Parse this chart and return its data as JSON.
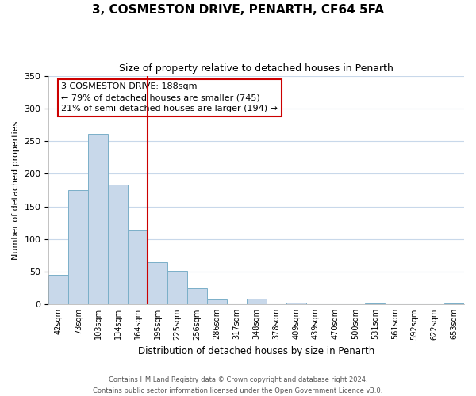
{
  "title": "3, COSMESTON DRIVE, PENARTH, CF64 5FA",
  "subtitle": "Size of property relative to detached houses in Penarth",
  "xlabel": "Distribution of detached houses by size in Penarth",
  "ylabel": "Number of detached properties",
  "bar_labels": [
    "42sqm",
    "73sqm",
    "103sqm",
    "134sqm",
    "164sqm",
    "195sqm",
    "225sqm",
    "256sqm",
    "286sqm",
    "317sqm",
    "348sqm",
    "378sqm",
    "409sqm",
    "439sqm",
    "470sqm",
    "500sqm",
    "531sqm",
    "561sqm",
    "592sqm",
    "622sqm",
    "653sqm"
  ],
  "bar_values": [
    45,
    175,
    261,
    184,
    113,
    65,
    51,
    25,
    8,
    0,
    9,
    0,
    3,
    0,
    0,
    0,
    2,
    0,
    0,
    0,
    2
  ],
  "bar_color": "#c8d8ea",
  "bar_edge_color": "#7aafc8",
  "vline_x": 4.5,
  "vline_color": "#cc0000",
  "ylim": [
    0,
    350
  ],
  "yticks": [
    0,
    50,
    100,
    150,
    200,
    250,
    300,
    350
  ],
  "annotation_title": "3 COSMESTON DRIVE: 188sqm",
  "annotation_line1": "← 79% of detached houses are smaller (745)",
  "annotation_line2": "21% of semi-detached houses are larger (194) →",
  "annotation_box_color": "#ffffff",
  "annotation_box_edge": "#cc0000",
  "footer_line1": "Contains HM Land Registry data © Crown copyright and database right 2024.",
  "footer_line2": "Contains public sector information licensed under the Open Government Licence v3.0.",
  "bg_color": "#ffffff",
  "grid_color": "#c8d8ea"
}
